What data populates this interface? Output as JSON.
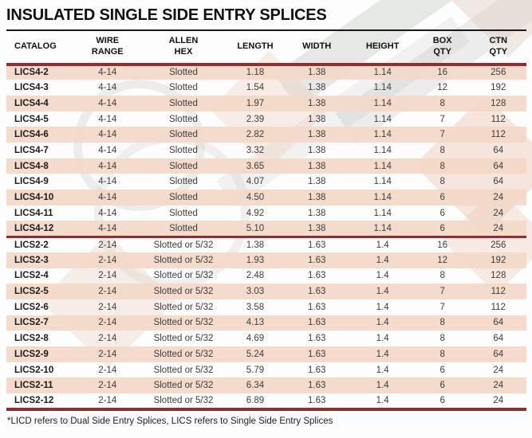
{
  "title": "INSULATED SINGLE SIDE ENTRY SPLICES",
  "colors": {
    "stripe": "rgba(243, 216, 199, 0.92)",
    "rule-red": "#8e2f33",
    "rule-black": "#1a1a1a"
  },
  "table": {
    "columns": [
      {
        "id": "catalog",
        "label_lines": [
          "CATALOG"
        ]
      },
      {
        "id": "wire-range",
        "label_lines": [
          "WIRE",
          "RANGE"
        ]
      },
      {
        "id": "allen-hex",
        "label_lines": [
          "ALLEN",
          "HEX"
        ]
      },
      {
        "id": "length",
        "label_lines": [
          "LENGTH"
        ]
      },
      {
        "id": "width",
        "label_lines": [
          "WIDTH"
        ]
      },
      {
        "id": "height",
        "label_lines": [
          "HEIGHT"
        ]
      },
      {
        "id": "box-qty",
        "label_lines": [
          "BOX",
          "QTY"
        ]
      },
      {
        "id": "ctn-qty",
        "label_lines": [
          "CTN",
          "QTY"
        ]
      }
    ],
    "groups": [
      {
        "name": "LICS4",
        "rows": [
          [
            "LICS4-2",
            "4-14",
            "Slotted",
            "1.18",
            "1.38",
            "1.14",
            "16",
            "256"
          ],
          [
            "LICS4-3",
            "4-14",
            "Slotted",
            "1.54",
            "1.38",
            "1.14",
            "12",
            "192"
          ],
          [
            "LICS4-4",
            "4-14",
            "Slotted",
            "1.97",
            "1.38",
            "1.14",
            "8",
            "128"
          ],
          [
            "LICS4-5",
            "4-14",
            "Slotted",
            "2.39",
            "1.38",
            "1.14",
            "7",
            "112"
          ],
          [
            "LICS4-6",
            "4-14",
            "Slotted",
            "2.82",
            "1.38",
            "1.14",
            "7",
            "112"
          ],
          [
            "LICS4-7",
            "4-14",
            "Slotted",
            "3.32",
            "1.38",
            "1.14",
            "8",
            "64"
          ],
          [
            "LICS4-8",
            "4-14",
            "Slotted",
            "3.65",
            "1.38",
            "1.14",
            "8",
            "64"
          ],
          [
            "LICS4-9",
            "4-14",
            "Slotted",
            "4.07",
            "1.38",
            "1.14",
            "8",
            "64"
          ],
          [
            "LICS4-10",
            "4-14",
            "Slotted",
            "4.50",
            "1.38",
            "1.14",
            "6",
            "24"
          ],
          [
            "LICS4-11",
            "4-14",
            "Slotted",
            "4.92",
            "1.38",
            "1.14",
            "6",
            "24"
          ],
          [
            "LICS4-12",
            "4-14",
            "Slotted",
            "5.10",
            "1.38",
            "1.14",
            "6",
            "24"
          ]
        ]
      },
      {
        "name": "LICS2",
        "rows": [
          [
            "LICS2-2",
            "2-14",
            "Slotted or 5/32",
            "1.38",
            "1.63",
            "1.4",
            "16",
            "256"
          ],
          [
            "LICS2-3",
            "2-14",
            "Slotted or 5/32",
            "1.93",
            "1.63",
            "1.4",
            "12",
            "192"
          ],
          [
            "LICS2-4",
            "2-14",
            "Slotted or 5/32",
            "2.48",
            "1.63",
            "1.4",
            "8",
            "128"
          ],
          [
            "LICS2-5",
            "2-14",
            "Slotted or 5/32",
            "3.03",
            "1.63",
            "1.4",
            "7",
            "112"
          ],
          [
            "LICS2-6",
            "2-14",
            "Slotted or 5/32",
            "3.58",
            "1.63",
            "1.4",
            "7",
            "112"
          ],
          [
            "LICS2-7",
            "2-14",
            "Slotted or 5/32",
            "4.13",
            "1.63",
            "1.4",
            "8",
            "64"
          ],
          [
            "LICS2-8",
            "2-14",
            "Slotted or 5/32",
            "4.69",
            "1.63",
            "1.4",
            "8",
            "64"
          ],
          [
            "LICS2-9",
            "2-14",
            "Slotted or 5/32",
            "5.24",
            "1.63",
            "1.4",
            "8",
            "64"
          ],
          [
            "LICS2-10",
            "2-14",
            "Slotted or 5/32",
            "5.79",
            "1.63",
            "1.4",
            "6",
            "24"
          ],
          [
            "LICS2-11",
            "2-14",
            "Slotted or 5/32",
            "6.34",
            "1.63",
            "1.4",
            "6",
            "24"
          ],
          [
            "LICS2-12",
            "2-14",
            "Slotted or 5/32",
            "6.89",
            "1.63",
            "1.4",
            "6",
            "24"
          ]
        ]
      }
    ]
  },
  "footnote": "*LICD refers to Dual Side Entry Splices, LICS refers to Single Side Entry Splices"
}
